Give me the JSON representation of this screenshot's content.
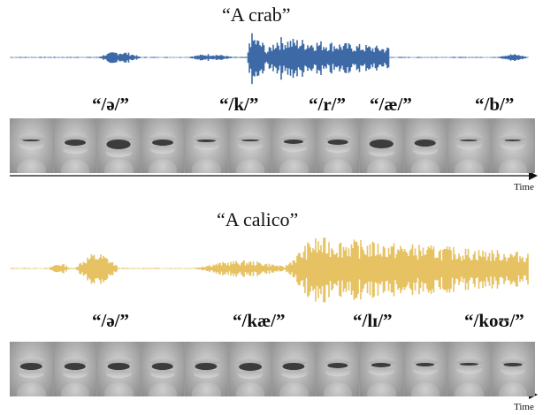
{
  "panels": [
    {
      "title": "“A crab”",
      "wave_color": "#3d6aa6",
      "phonemes": [
        "“/ə/”",
        "“/k/”",
        "“/r/”",
        "“/æ/”",
        "“/b/”"
      ],
      "mouth_openness": [
        0.15,
        0.5,
        0.75,
        0.5,
        0.2,
        0.15,
        0.35,
        0.4,
        0.7,
        0.55,
        0.1,
        0.05
      ],
      "axis_label": "Time"
    },
    {
      "title": "“A calico”",
      "wave_color": "#e6c262",
      "phonemes": [
        "“/ə/”",
        "“/kæ/”",
        "“/lɪ/”",
        "“/koʊ/”"
      ],
      "mouth_openness": [
        0.55,
        0.55,
        0.55,
        0.55,
        0.6,
        0.65,
        0.6,
        0.45,
        0.35,
        0.3,
        0.2,
        0.25
      ],
      "axis_label": "Time"
    }
  ]
}
